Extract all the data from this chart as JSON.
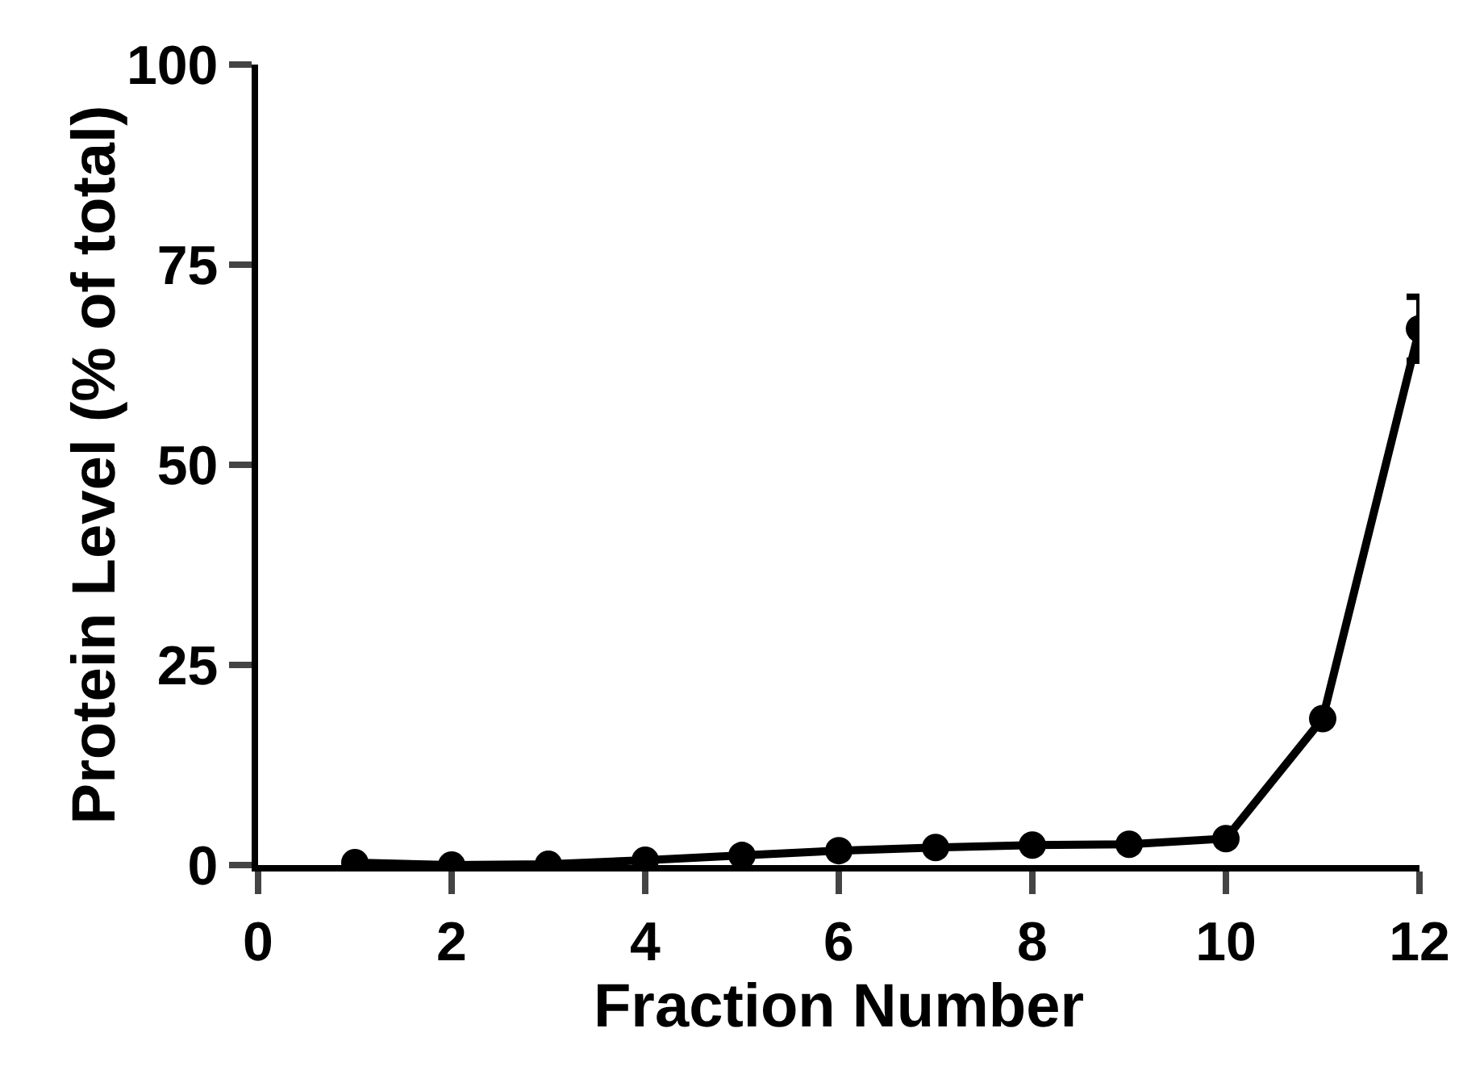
{
  "chart_data": {
    "type": "line",
    "xlabel": "Fraction Number",
    "ylabel": "Protein Level (% of total)",
    "x": [
      1,
      2,
      3,
      4,
      5,
      6,
      7,
      8,
      9,
      10,
      11,
      12
    ],
    "values": [
      0.3,
      0,
      0.1,
      0.6,
      1.2,
      1.8,
      2.2,
      2.5,
      2.6,
      3.3,
      18.3,
      67
    ],
    "errors": [
      null,
      null,
      null,
      null,
      null,
      null,
      null,
      null,
      null,
      null,
      null,
      4
    ],
    "color": "#000000",
    "marker": "circle",
    "line_style": "solid",
    "grid": false,
    "legend": false,
    "xlim": [
      0,
      12
    ],
    "xticks": [
      0,
      2,
      4,
      6,
      8,
      10,
      12
    ],
    "ylim": [
      0,
      100
    ],
    "yticks": [
      0,
      25,
      50,
      75,
      100
    ]
  }
}
